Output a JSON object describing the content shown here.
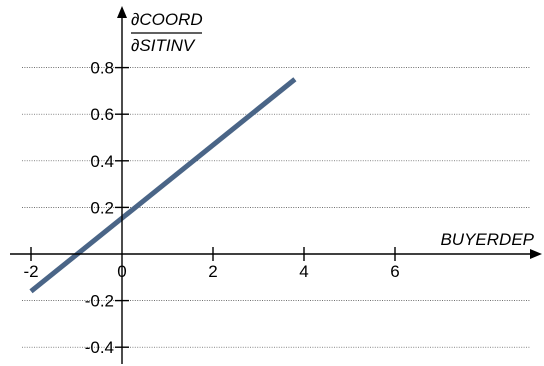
{
  "chart_data": {
    "type": "line",
    "title": "",
    "xlabel": "BUYERDEP",
    "ylabel": {
      "numerator": "∂COORD",
      "denominator": "∂SITINV"
    },
    "xlim": [
      -2.25,
      9.0
    ],
    "ylim": [
      -0.45,
      0.95
    ],
    "xticks": [
      -2,
      0,
      2,
      4,
      6
    ],
    "xtick_labels": [
      "-2",
      "0",
      "2",
      "4",
      "6"
    ],
    "yticks": [
      -0.4,
      -0.2,
      0.2,
      0.4,
      0.6,
      0.8
    ],
    "ytick_labels": [
      "-0.4",
      "-0.2",
      "0.2",
      "0.4",
      "0.6",
      "0.8"
    ],
    "grid": {
      "horizontal": true,
      "vertical": false,
      "style": "dotted"
    },
    "series": [
      {
        "x": [
          -2.0,
          3.8
        ],
        "y": [
          -0.16,
          0.75
        ],
        "color": "#4a6587"
      }
    ]
  }
}
